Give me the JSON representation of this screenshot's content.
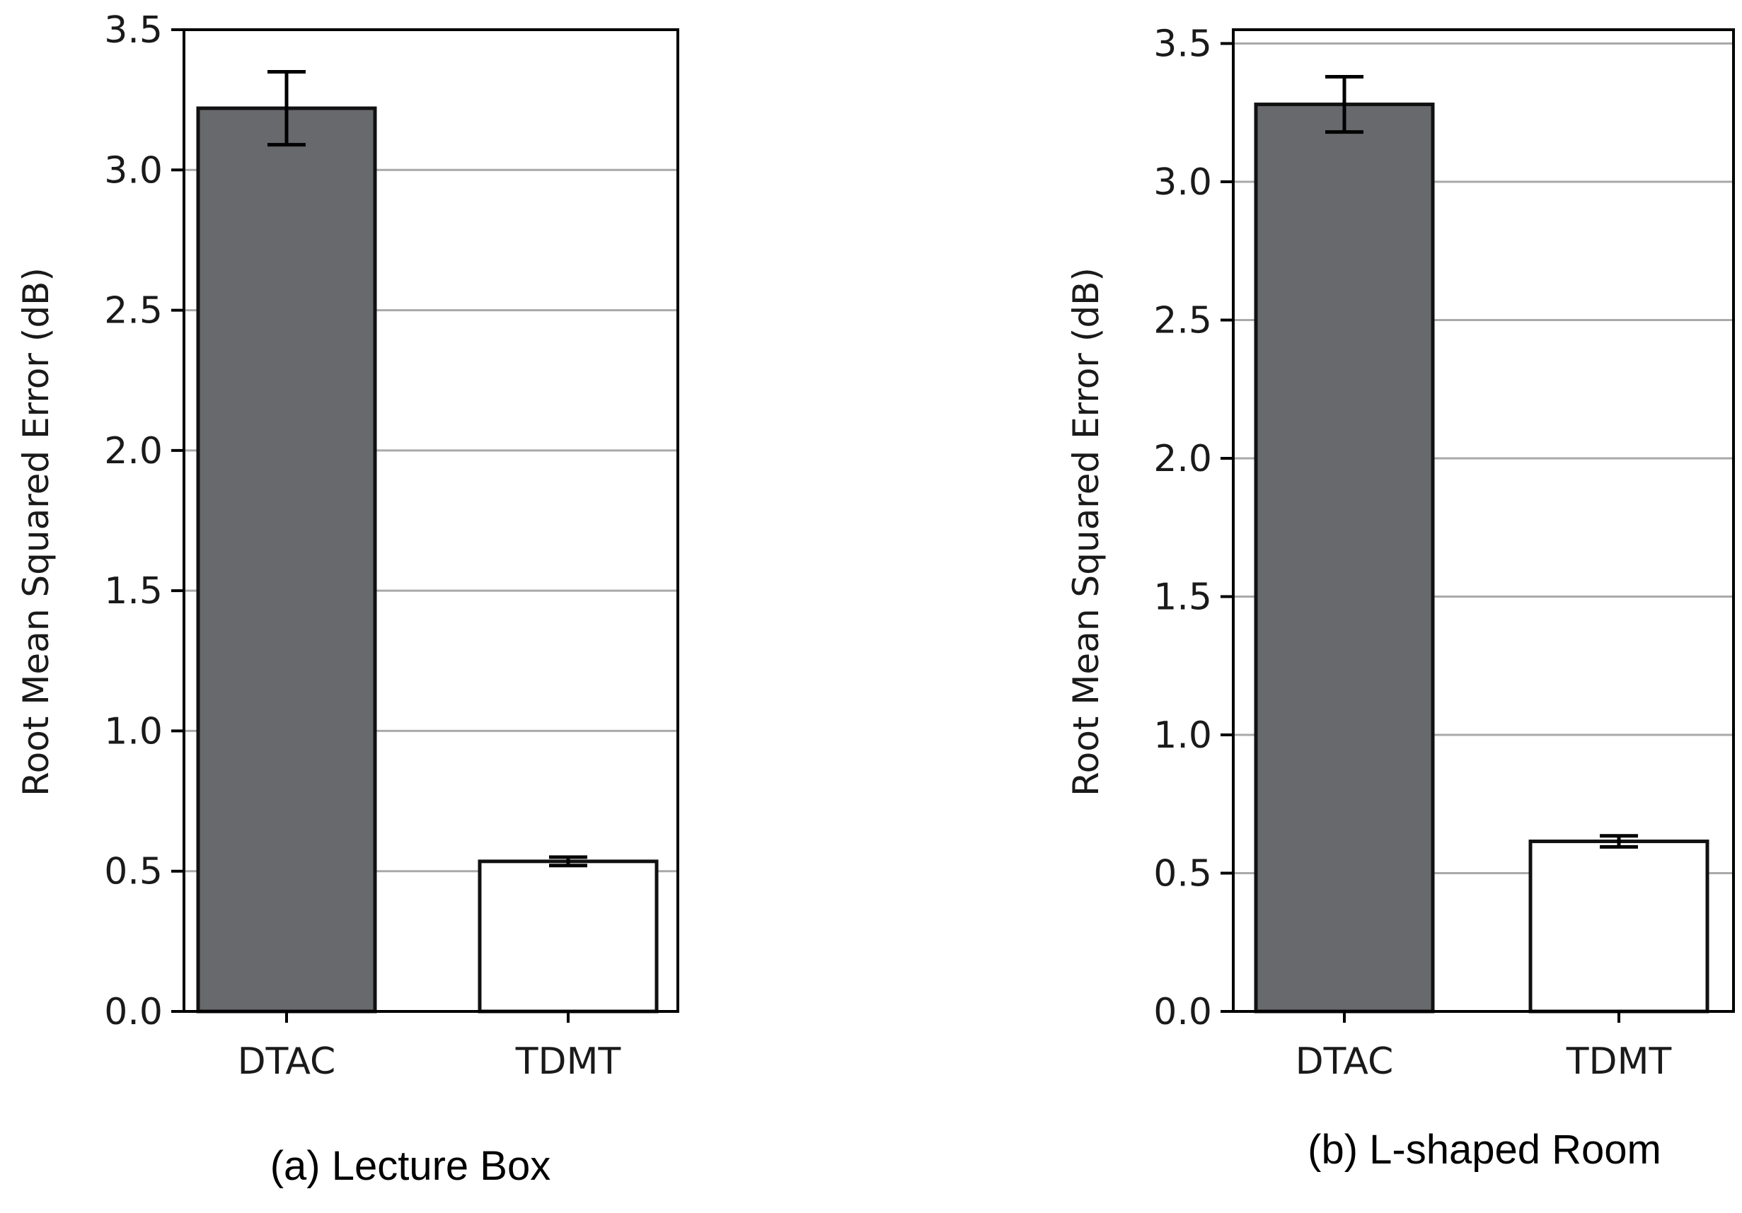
{
  "chart_data": [
    {
      "type": "bar",
      "caption": "(a) Lecture Box",
      "categories": [
        "DTAC",
        "TDMT"
      ],
      "values": [
        3.22,
        0.535
      ],
      "errors": [
        0.13,
        0.015
      ],
      "bar_colors": [
        "#68696d",
        "#ffffff"
      ],
      "ylabel": "Root Mean Squared Error (dB)",
      "ylim": [
        0,
        3.5
      ],
      "yticks": [
        "0.0",
        "0.5",
        "1.0",
        "1.5",
        "2.0",
        "2.5",
        "3.0",
        "3.5"
      ],
      "grid": "horizontal"
    },
    {
      "type": "bar",
      "caption": "(b) L-shaped Room",
      "categories": [
        "DTAC",
        "TDMT"
      ],
      "values": [
        3.28,
        0.615
      ],
      "errors": [
        0.1,
        0.02
      ],
      "bar_colors": [
        "#68696d",
        "#ffffff"
      ],
      "ylabel": "Root Mean Squared Error (dB)",
      "ylim": [
        0,
        3.55
      ],
      "yticks": [
        "0.0",
        "0.5",
        "1.0",
        "1.5",
        "2.0",
        "2.5",
        "3.0",
        "3.5"
      ],
      "grid": "horizontal"
    }
  ]
}
